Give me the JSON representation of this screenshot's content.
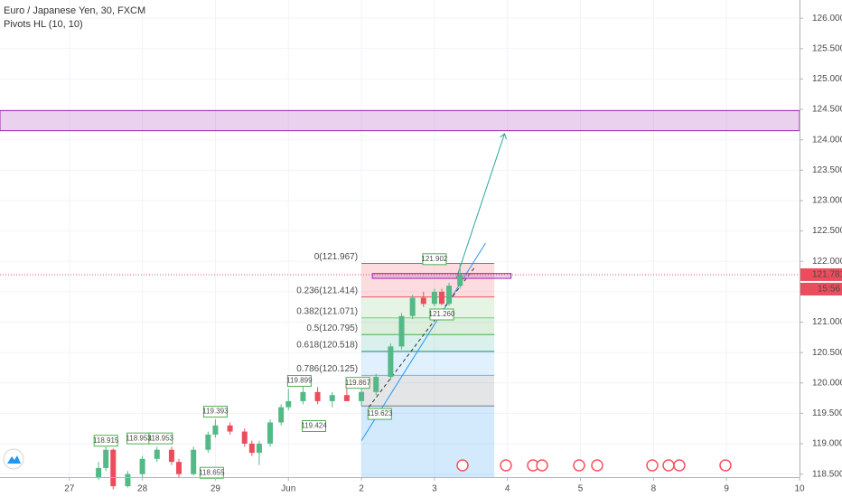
{
  "chart_data": {
    "type": "candlestick",
    "title": "Euro / Japanese Yen, 30, FXCM",
    "subtitle": "Pivots HL (10, 10)",
    "xlim": [
      -0.95,
      10
    ],
    "xticks": [
      {
        "value": 0,
        "label": "27"
      },
      {
        "value": 1,
        "label": "28"
      },
      {
        "value": 2,
        "label": "29"
      },
      {
        "value": 3,
        "label": "Jun"
      },
      {
        "value": 4,
        "label": "2"
      },
      {
        "value": 5,
        "label": "3"
      },
      {
        "value": 6,
        "label": "4"
      },
      {
        "value": 7,
        "label": "5"
      },
      {
        "value": 8,
        "label": "8"
      },
      {
        "value": 9,
        "label": "9"
      },
      {
        "value": 10,
        "label": "10"
      }
    ],
    "ylim": [
      118.45,
      126.3
    ],
    "yticks": [
      {
        "value": 118.5,
        "label": "118.500"
      },
      {
        "value": 119,
        "label": "119.000"
      },
      {
        "value": 119.5,
        "label": "119.500"
      },
      {
        "value": 120,
        "label": "120.000"
      },
      {
        "value": 120.5,
        "label": "120.500"
      },
      {
        "value": 121,
        "label": "121.000"
      },
      {
        "value": 121.5,
        "label": "121.500"
      },
      {
        "value": 122,
        "label": "122.000"
      },
      {
        "value": 122.5,
        "label": "122.500"
      },
      {
        "value": 123,
        "label": "123.000"
      },
      {
        "value": 123.5,
        "label": "123.500"
      },
      {
        "value": 124,
        "label": "124.000"
      },
      {
        "value": 124.5,
        "label": "124.500"
      },
      {
        "value": 125,
        "label": "125.000"
      },
      {
        "value": 125.5,
        "label": "125.500"
      },
      {
        "value": 126,
        "label": "126.000"
      }
    ],
    "grid": true,
    "up_color": "#53b987",
    "down_color": "#eb4d5c",
    "x": [
      0.4,
      0.5,
      0.6,
      0.8,
      1.0,
      1.2,
      1.4,
      1.5,
      1.7,
      1.9,
      2.0,
      2.2,
      2.4,
      2.5,
      2.6,
      2.75,
      2.9,
      3.0,
      3.2,
      3.4,
      3.6,
      3.8,
      4.0,
      4.2,
      4.4,
      4.55,
      4.7,
      4.85,
      5.0,
      5.1,
      5.2,
      5.35
    ],
    "open": [
      118.45,
      118.6,
      118.9,
      118.3,
      118.5,
      118.75,
      118.9,
      118.7,
      118.5,
      118.9,
      119.15,
      119.3,
      119.2,
      119.0,
      118.85,
      119.0,
      119.35,
      119.6,
      119.7,
      119.85,
      119.7,
      119.8,
      119.7,
      119.85,
      120.1,
      120.6,
      121.1,
      121.4,
      121.3,
      121.5,
      121.3,
      121.6
    ],
    "high": [
      118.7,
      118.95,
      118.92,
      118.55,
      118.8,
      118.95,
      118.95,
      118.75,
      118.95,
      119.2,
      119.4,
      119.35,
      119.25,
      119.05,
      119.05,
      119.4,
      119.65,
      119.9,
      119.95,
      119.93,
      119.85,
      119.9,
      119.9,
      120.15,
      120.65,
      121.15,
      121.45,
      121.5,
      121.55,
      121.55,
      121.65,
      121.97
    ],
    "low": [
      118.4,
      118.55,
      118.25,
      118.28,
      118.45,
      118.7,
      118.65,
      118.45,
      118.48,
      118.85,
      119.1,
      119.15,
      118.95,
      118.8,
      118.65,
      118.95,
      119.3,
      119.55,
      119.65,
      119.65,
      119.6,
      119.7,
      119.62,
      119.8,
      120.05,
      120.55,
      121.05,
      121.25,
      121.26,
      121.28,
      121.27,
      121.55
    ],
    "close": [
      118.6,
      118.9,
      118.3,
      118.5,
      118.75,
      118.9,
      118.7,
      118.5,
      118.9,
      119.15,
      119.3,
      119.2,
      119.0,
      118.85,
      119.0,
      119.35,
      119.6,
      119.7,
      119.85,
      119.7,
      119.8,
      119.7,
      119.85,
      120.1,
      120.6,
      121.1,
      121.4,
      121.3,
      121.5,
      121.3,
      121.6,
      121.78
    ],
    "last_price": 121.781,
    "last_price_label": "121.781",
    "countdown": "15:56",
    "zone": [
      124.15,
      124.48
    ],
    "fib": {
      "x": [
        4,
        5.82
      ],
      "bottom": 119.62,
      "levels": [
        {
          "label": "0(121.967)",
          "price": 121.967,
          "color": "#787b86"
        },
        {
          "label": "0.236(121.414)",
          "price": 121.414,
          "color": "#f7525f"
        },
        {
          "label": "0.382(121.071)",
          "price": 121.071,
          "color": "#81c784"
        },
        {
          "label": "0.5(120.795)",
          "price": 120.795,
          "color": "#4caf50"
        },
        {
          "label": "0.618(120.518)",
          "price": 120.518,
          "color": "#089981"
        },
        {
          "label": "0.786(120.125)",
          "price": 120.125,
          "color": "#64b5f6"
        }
      ]
    },
    "pivots": {
      "x": [
        0.5,
        0.95,
        1.25,
        2.0,
        3.15,
        3.35,
        3.95,
        4.25,
        1.95,
        5.1,
        5.0
      ],
      "values": [
        118.915,
        118.953,
        118.953,
        119.393,
        119.899,
        119.424,
        119.867,
        119.623,
        118.655,
        121.26,
        121.902
      ],
      "value_labels": [
        "118.915",
        "118.953",
        "118.953",
        "119.393",
        "119.899",
        "119.424",
        "119.867",
        "119.623",
        "118.655",
        "121.260",
        "121.902"
      ],
      "above": [
        true,
        true,
        true,
        true,
        true,
        false,
        true,
        false,
        false,
        false,
        true
      ]
    }
  }
}
